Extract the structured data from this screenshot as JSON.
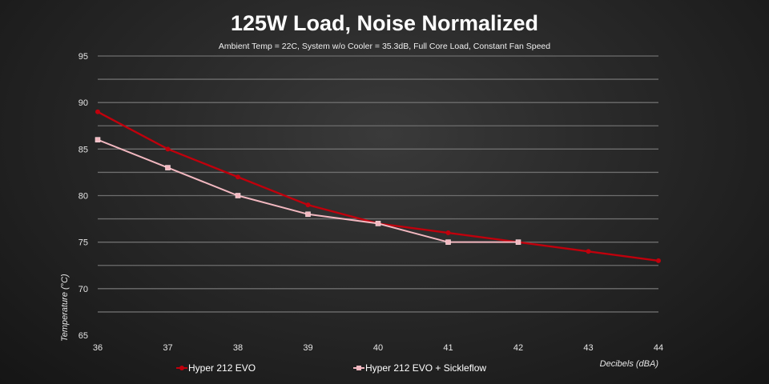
{
  "chart_data": {
    "type": "line",
    "title": "125W Load, Noise Normalized",
    "subtitle": "Ambient Temp = 22C, System w/o Cooler = 35.3dB, Full Core Load, Constant Fan Speed",
    "xlabel": "Decibels (dBA)",
    "ylabel": "Temperature (°C)",
    "x": [
      36,
      37,
      38,
      39,
      40,
      41,
      42,
      43,
      44
    ],
    "x_tick_labels": [
      "36",
      "37",
      "38",
      "39",
      "40",
      "41",
      "42",
      "43",
      "44"
    ],
    "y_tick_labels": [
      "65",
      "70",
      "75",
      "80",
      "85",
      "90",
      "95"
    ],
    "xlim": [
      36,
      44
    ],
    "ylim": [
      65,
      95
    ],
    "grid": true,
    "legend_position": "bottom",
    "series": [
      {
        "name": "Hyper 212 EVO",
        "color": "#c0000c",
        "marker": "circle",
        "x": [
          36,
          37,
          38,
          39,
          40,
          41,
          42,
          43,
          44
        ],
        "values": [
          89,
          85,
          82,
          79,
          77,
          76,
          75,
          74,
          73
        ]
      },
      {
        "name": "Hyper 212 EVO + Sickleflow",
        "color": "#f2b8c0",
        "marker": "square",
        "x": [
          36,
          37,
          38,
          39,
          40,
          41,
          42
        ],
        "values": [
          86,
          83,
          80,
          78,
          77,
          75,
          75
        ]
      }
    ]
  }
}
